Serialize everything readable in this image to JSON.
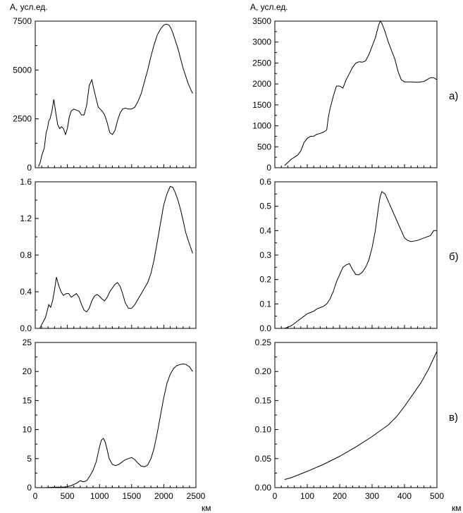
{
  "header": {
    "left_ylabel": "A, усл.ед.",
    "right_ylabel": "A, усл.ед."
  },
  "rows": [
    {
      "label": "а)"
    },
    {
      "label": "б)"
    },
    {
      "label": "в)"
    }
  ],
  "x_unit": "км",
  "chart_data": [
    {
      "type": "line",
      "id": "left-a",
      "xlim": [
        0,
        2500
      ],
      "ylim": [
        0,
        7500
      ],
      "xticks": [
        0,
        500,
        1000,
        1500,
        2000,
        2500
      ],
      "xtick_labels": [
        "0",
        "500",
        "1000",
        "1500",
        "2000",
        "2500"
      ],
      "yticks": [
        0,
        2500,
        5000,
        7500
      ],
      "ytick_labels": [
        "0",
        "2500",
        "5000",
        "7500"
      ],
      "x": [
        50,
        80,
        100,
        120,
        140,
        170,
        190,
        210,
        230,
        260,
        290,
        320,
        350,
        380,
        410,
        440,
        470,
        500,
        530,
        560,
        600,
        640,
        680,
        720,
        760,
        800,
        840,
        880,
        920,
        950,
        980,
        1010,
        1040,
        1080,
        1120,
        1160,
        1200,
        1240,
        1280,
        1320,
        1360,
        1400,
        1450,
        1500,
        1550,
        1600,
        1650,
        1700,
        1750,
        1800,
        1850,
        1900,
        1950,
        2000,
        2040,
        2080,
        2110,
        2140,
        2180,
        2220,
        2260,
        2300,
        2340,
        2380,
        2420,
        2450
      ],
      "y": [
        50,
        300,
        600,
        800,
        1000,
        1800,
        2000,
        2400,
        2500,
        2900,
        3500,
        2800,
        2200,
        2000,
        2100,
        2000,
        1700,
        2000,
        2600,
        2900,
        3000,
        2950,
        2900,
        2700,
        2700,
        3200,
        4200,
        4500,
        3900,
        3500,
        3100,
        3000,
        2900,
        2700,
        2300,
        1800,
        1700,
        1900,
        2400,
        2800,
        3000,
        3050,
        3000,
        3000,
        3100,
        3400,
        3800,
        4400,
        5000,
        5700,
        6300,
        6800,
        7100,
        7300,
        7350,
        7300,
        7150,
        6900,
        6500,
        6100,
        5600,
        5100,
        4700,
        4300,
        4000,
        3800
      ]
    },
    {
      "type": "line",
      "id": "right-a",
      "xlim": [
        0,
        500
      ],
      "ylim": [
        0,
        3500
      ],
      "xticks": [
        0,
        100,
        200,
        300,
        400,
        500
      ],
      "xtick_labels": [
        "0",
        "100",
        "200",
        "300",
        "400",
        "500"
      ],
      "yticks": [
        0,
        500,
        1000,
        1500,
        2000,
        2500,
        3000,
        3500
      ],
      "ytick_labels": [
        "0",
        "500",
        "1000",
        "1500",
        "2000",
        "2500",
        "3000",
        "3500"
      ],
      "x": [
        30,
        50,
        70,
        80,
        90,
        100,
        110,
        120,
        130,
        140,
        150,
        160,
        165,
        170,
        180,
        190,
        200,
        210,
        220,
        230,
        240,
        250,
        260,
        270,
        280,
        290,
        300,
        310,
        320,
        325,
        330,
        340,
        350,
        360,
        370,
        380,
        390,
        400,
        420,
        440,
        460,
        480,
        490,
        500
      ],
      "y": [
        50,
        200,
        300,
        400,
        600,
        700,
        750,
        750,
        800,
        820,
        850,
        900,
        1200,
        1400,
        1700,
        1950,
        1950,
        1900,
        2100,
        2250,
        2400,
        2500,
        2530,
        2520,
        2550,
        2700,
        2900,
        3100,
        3400,
        3500,
        3450,
        3250,
        3000,
        2800,
        2600,
        2300,
        2100,
        2050,
        2050,
        2040,
        2060,
        2150,
        2150,
        2100
      ]
    },
    {
      "type": "line",
      "id": "left-b",
      "xlim": [
        0,
        2500
      ],
      "ylim": [
        0.0,
        1.6
      ],
      "xticks": [
        0,
        500,
        1000,
        1500,
        2000,
        2500
      ],
      "xtick_labels": [
        "0",
        "500",
        "1000",
        "1500",
        "2000",
        "2500"
      ],
      "yticks": [
        0.0,
        0.4,
        0.8,
        1.2,
        1.6
      ],
      "ytick_labels": [
        "0.0",
        "0.4",
        "0.8",
        "1.2",
        "1.6"
      ],
      "x": [
        70,
        100,
        130,
        160,
        190,
        210,
        240,
        270,
        300,
        330,
        360,
        400,
        440,
        480,
        520,
        560,
        600,
        640,
        680,
        720,
        760,
        800,
        840,
        880,
        920,
        960,
        1000,
        1040,
        1080,
        1120,
        1160,
        1200,
        1240,
        1280,
        1320,
        1360,
        1400,
        1450,
        1500,
        1550,
        1600,
        1650,
        1700,
        1750,
        1800,
        1850,
        1900,
        1950,
        2000,
        2050,
        2100,
        2140,
        2180,
        2220,
        2260,
        2300,
        2340,
        2380,
        2420,
        2450
      ],
      "y": [
        0.0,
        0.04,
        0.08,
        0.12,
        0.2,
        0.26,
        0.23,
        0.3,
        0.42,
        0.56,
        0.48,
        0.4,
        0.36,
        0.38,
        0.38,
        0.34,
        0.36,
        0.38,
        0.34,
        0.26,
        0.2,
        0.18,
        0.22,
        0.3,
        0.35,
        0.37,
        0.35,
        0.32,
        0.3,
        0.34,
        0.4,
        0.44,
        0.48,
        0.5,
        0.46,
        0.38,
        0.28,
        0.22,
        0.22,
        0.26,
        0.32,
        0.38,
        0.44,
        0.5,
        0.6,
        0.75,
        0.95,
        1.15,
        1.35,
        1.47,
        1.55,
        1.54,
        1.48,
        1.4,
        1.3,
        1.18,
        1.05,
        0.96,
        0.88,
        0.82
      ]
    },
    {
      "type": "line",
      "id": "right-b",
      "xlim": [
        0,
        500
      ],
      "ylim": [
        0.0,
        0.6
      ],
      "xticks": [
        0,
        100,
        200,
        300,
        400,
        500
      ],
      "xtick_labels": [
        "0",
        "100",
        "200",
        "300",
        "400",
        "500"
      ],
      "yticks": [
        0.0,
        0.1,
        0.2,
        0.3,
        0.4,
        0.5,
        0.6
      ],
      "ytick_labels": [
        "0.0",
        "0.1",
        "0.2",
        "0.3",
        "0.4",
        "0.5",
        "0.6"
      ],
      "x": [
        30,
        40,
        50,
        60,
        70,
        80,
        90,
        100,
        110,
        120,
        130,
        140,
        150,
        160,
        170,
        180,
        190,
        200,
        210,
        220,
        230,
        240,
        250,
        260,
        270,
        280,
        290,
        300,
        310,
        320,
        325,
        330,
        340,
        350,
        360,
        370,
        380,
        390,
        400,
        410,
        420,
        440,
        460,
        480,
        490,
        500
      ],
      "y": [
        0.0,
        0.005,
        0.01,
        0.02,
        0.03,
        0.04,
        0.05,
        0.06,
        0.065,
        0.07,
        0.08,
        0.085,
        0.09,
        0.1,
        0.12,
        0.15,
        0.19,
        0.22,
        0.25,
        0.26,
        0.265,
        0.24,
        0.22,
        0.22,
        0.23,
        0.25,
        0.28,
        0.33,
        0.4,
        0.5,
        0.54,
        0.56,
        0.55,
        0.52,
        0.49,
        0.46,
        0.43,
        0.4,
        0.37,
        0.36,
        0.355,
        0.36,
        0.37,
        0.38,
        0.4,
        0.4
      ]
    },
    {
      "type": "line",
      "id": "left-c",
      "xlim": [
        0,
        2500
      ],
      "ylim": [
        0,
        25
      ],
      "xticks": [
        0,
        500,
        1000,
        1500,
        2000,
        2500
      ],
      "xtick_labels": [
        "0",
        "500",
        "1000",
        "1500",
        "2000",
        "2500"
      ],
      "yticks": [
        0,
        5,
        10,
        15,
        20,
        25
      ],
      "ytick_labels": [
        "0",
        "5",
        "10",
        "15",
        "20",
        "25"
      ],
      "x": [
        150,
        300,
        450,
        550,
        650,
        700,
        750,
        800,
        850,
        900,
        950,
        1000,
        1030,
        1060,
        1090,
        1120,
        1150,
        1200,
        1250,
        1300,
        1350,
        1400,
        1450,
        1500,
        1550,
        1600,
        1650,
        1700,
        1750,
        1800,
        1850,
        1900,
        1950,
        2000,
        2050,
        2100,
        2150,
        2200,
        2250,
        2300,
        2350,
        2400,
        2450
      ],
      "y": [
        0.0,
        0.1,
        0.1,
        0.3,
        0.8,
        1.2,
        1.0,
        1.2,
        2.0,
        3.0,
        4.5,
        7.0,
        8.2,
        8.5,
        7.8,
        6.5,
        5.0,
        4.0,
        3.8,
        4.0,
        4.4,
        4.8,
        5.0,
        5.2,
        4.8,
        4.2,
        3.7,
        3.6,
        3.9,
        5.0,
        6.8,
        9.5,
        12.5,
        15.5,
        18.0,
        19.5,
        20.5,
        21.0,
        21.2,
        21.3,
        21.2,
        20.8,
        20.0
      ]
    },
    {
      "type": "line",
      "id": "right-c",
      "xlim": [
        0,
        500
      ],
      "ylim": [
        0.0,
        0.25
      ],
      "xticks": [
        0,
        100,
        200,
        300,
        400,
        500
      ],
      "xtick_labels": [
        "0",
        "100",
        "200",
        "300",
        "400",
        "500"
      ],
      "yticks": [
        0.0,
        0.05,
        0.1,
        0.15,
        0.2,
        0.25
      ],
      "ytick_labels": [
        "0.00",
        "0.05",
        "0.10",
        "0.15",
        "0.20",
        "0.25"
      ],
      "x": [
        30,
        50,
        100,
        150,
        200,
        250,
        300,
        350,
        375,
        400,
        425,
        450,
        475,
        500
      ],
      "y": [
        0.014,
        0.017,
        0.028,
        0.04,
        0.054,
        0.07,
        0.088,
        0.108,
        0.122,
        0.14,
        0.16,
        0.18,
        0.205,
        0.235
      ]
    }
  ]
}
